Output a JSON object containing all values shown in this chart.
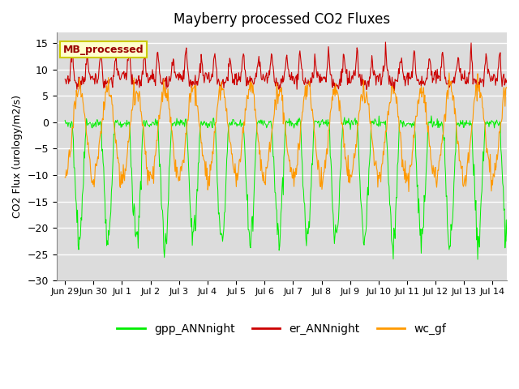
{
  "title": "Mayberry processed CO2 Fluxes",
  "ylabel": "CO2 Flux (urology/m2/s)",
  "ylim": [
    -30,
    17
  ],
  "yticks": [
    -30,
    -25,
    -20,
    -15,
    -10,
    -5,
    0,
    5,
    10,
    15
  ],
  "background_color": "#ffffff",
  "plot_bg_color": "#dcdcdc",
  "grid_color": "#ffffff",
  "annotation_text": "MB_processed",
  "annotation_bg": "#ffffcc",
  "annotation_border": "#cccc00",
  "annotation_text_color": "#990000",
  "colors": {
    "gpp": "#00ee00",
    "er": "#cc0000",
    "wc": "#ff9900"
  },
  "legend_labels": [
    "gpp_ANNnight",
    "er_ANNnight",
    "wc_gf"
  ],
  "xtick_dates": [
    "Jun 29",
    "Jun 30",
    "Jul 1",
    "Jul 2",
    "Jul 3",
    "Jul 4",
    "Jul 5",
    "Jul 6",
    "Jul 7",
    "Jul 8",
    "Jul 9",
    "Jul 10",
    "Jul 11",
    "Jul 12",
    "Jul 13",
    "Jul 14"
  ]
}
